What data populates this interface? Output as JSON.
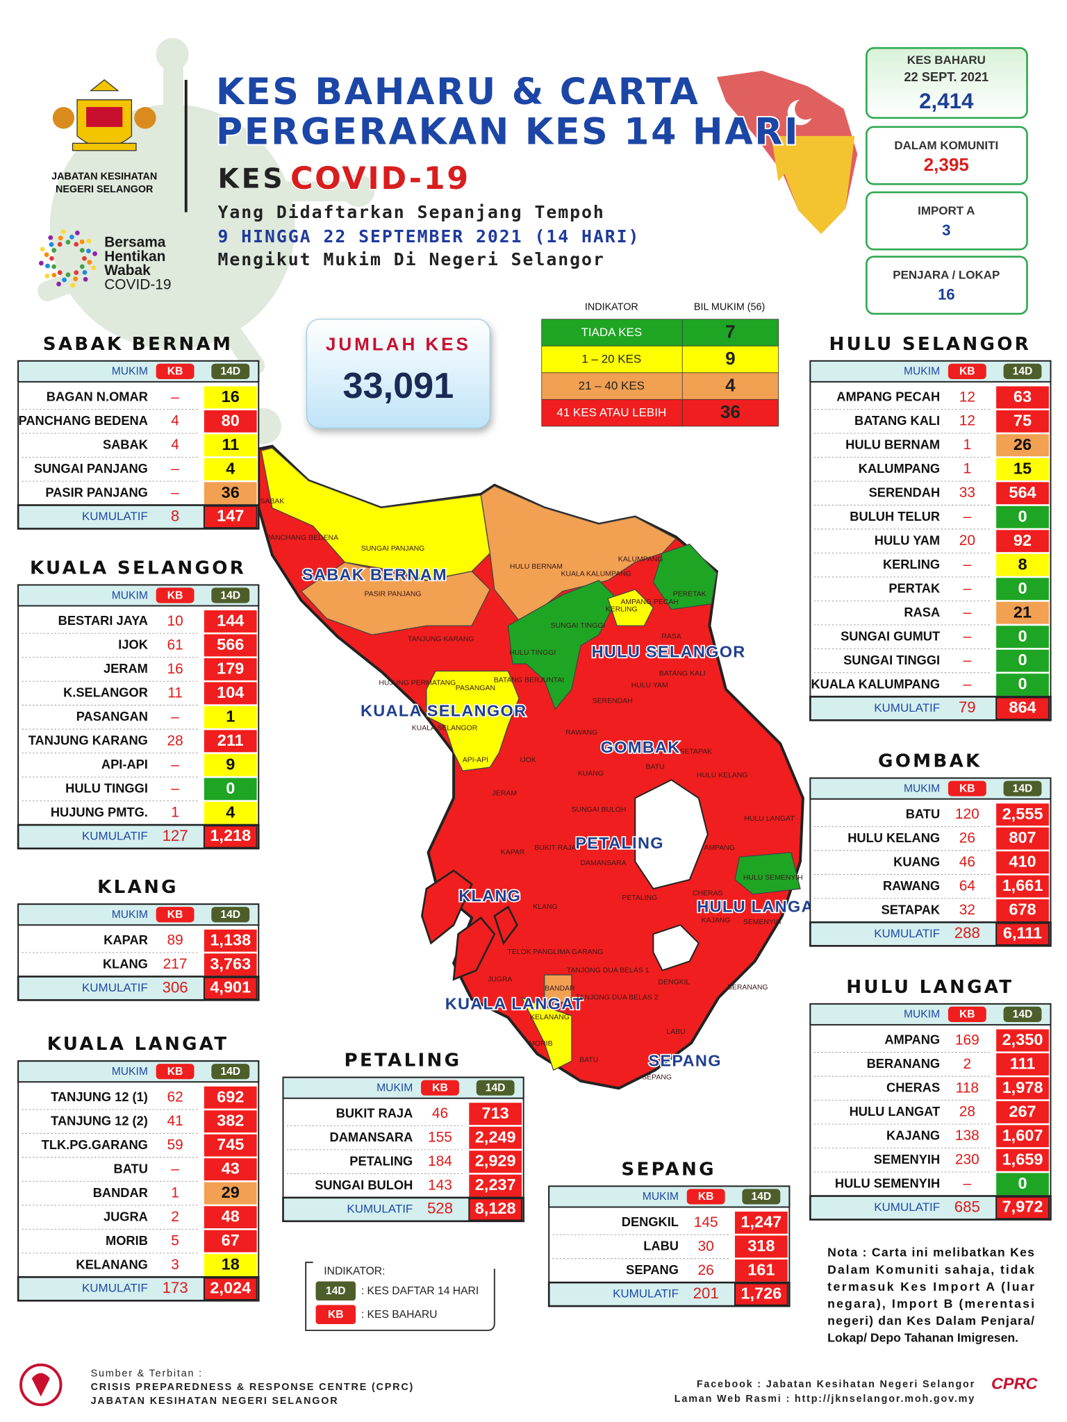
{
  "header": {
    "logo_caption": [
      "JABATAN KESIHATAN",
      "NEGERI SELANGOR"
    ],
    "campaign": [
      "Bersama",
      "Hentikan",
      "Wabak",
      "COVID-19"
    ],
    "title_line1": "KES BAHARU & CARTA",
    "title_line2": "PERGERAKAN KES 14 HARI",
    "kes": "KES",
    "covid": "COVID-19",
    "sub1": "Yang Didaftarkan Sepanjang Tempoh",
    "sub2": "9 HINGGA 22 SEPTEMBER 2021 (14 HARI)",
    "sub3": "Mengikut Mukim Di Negeri Selangor"
  },
  "summary": [
    {
      "label": "KES BAHARU",
      "date": "22 SEPT. 2021",
      "value": "2,414"
    },
    {
      "label": "DALAM KOMUNITI",
      "value": "2,395"
    },
    {
      "label": "IMPORT A",
      "value": "3"
    },
    {
      "label": "PENJARA / LOKAP",
      "value": "16"
    }
  ],
  "total": {
    "label": "JUMLAH KES",
    "value": "33,091"
  },
  "indicator": {
    "header": [
      "INDIKATOR",
      "BIL MUKIM (56)"
    ],
    "rows": [
      {
        "label": "TIADA KES",
        "count": "7",
        "color": "#1fa524"
      },
      {
        "label": "1 – 20 KES",
        "count": "9",
        "color": "#ffff00"
      },
      {
        "label": "21 – 40 KES",
        "count": "4",
        "color": "#f2a052"
      },
      {
        "label": "41 KES ATAU LEBIH",
        "count": "36",
        "color": "#f01e1e"
      }
    ]
  },
  "table_header": [
    "MUKIM",
    "KB",
    "14D"
  ],
  "total_label": "KUMULATIF",
  "districts": [
    {
      "name": "SABAK BERNAM",
      "rows": [
        {
          "mukim": "BAGAN N.OMAR",
          "kb": "–",
          "d14": "16",
          "color": "#ffff00"
        },
        {
          "mukim": "PANCHANG BEDENA",
          "kb": "4",
          "d14": "80",
          "color": "#f01e1e"
        },
        {
          "mukim": "SABAK",
          "kb": "4",
          "d14": "11",
          "color": "#ffff00"
        },
        {
          "mukim": "SUNGAI PANJANG",
          "kb": "–",
          "d14": "4",
          "color": "#ffff00"
        },
        {
          "mukim": "PASIR PANJANG",
          "kb": "–",
          "d14": "36",
          "color": "#f2a052"
        }
      ],
      "total_kb": "8",
      "total_d14": "147"
    },
    {
      "name": "KUALA SELANGOR",
      "rows": [
        {
          "mukim": "BESTARI JAYA",
          "kb": "10",
          "d14": "144",
          "color": "#f01e1e"
        },
        {
          "mukim": "IJOK",
          "kb": "61",
          "d14": "566",
          "color": "#f01e1e"
        },
        {
          "mukim": "JERAM",
          "kb": "16",
          "d14": "179",
          "color": "#f01e1e"
        },
        {
          "mukim": "K.SELANGOR",
          "kb": "11",
          "d14": "104",
          "color": "#f01e1e"
        },
        {
          "mukim": "PASANGAN",
          "kb": "–",
          "d14": "1",
          "color": "#ffff00"
        },
        {
          "mukim": "TANJUNG KARANG",
          "kb": "28",
          "d14": "211",
          "color": "#f01e1e"
        },
        {
          "mukim": "API-API",
          "kb": "–",
          "d14": "9",
          "color": "#ffff00"
        },
        {
          "mukim": "HULU TINGGI",
          "kb": "–",
          "d14": "0",
          "color": "#1fa524"
        },
        {
          "mukim": "HUJUNG PMTG.",
          "kb": "1",
          "d14": "4",
          "color": "#ffff00"
        }
      ],
      "total_kb": "127",
      "total_d14": "1,218"
    },
    {
      "name": "KLANG",
      "rows": [
        {
          "mukim": "KAPAR",
          "kb": "89",
          "d14": "1,138",
          "color": "#f01e1e"
        },
        {
          "mukim": "KLANG",
          "kb": "217",
          "d14": "3,763",
          "color": "#f01e1e"
        }
      ],
      "total_kb": "306",
      "total_d14": "4,901"
    },
    {
      "name": "KUALA LANGAT",
      "rows": [
        {
          "mukim": "TANJUNG 12 (1)",
          "kb": "62",
          "d14": "692",
          "color": "#f01e1e"
        },
        {
          "mukim": "TANJUNG 12 (2)",
          "kb": "41",
          "d14": "382",
          "color": "#f01e1e"
        },
        {
          "mukim": "TLK.PG.GARANG",
          "kb": "59",
          "d14": "745",
          "color": "#f01e1e"
        },
        {
          "mukim": "BATU",
          "kb": "–",
          "d14": "43",
          "color": "#f01e1e"
        },
        {
          "mukim": "BANDAR",
          "kb": "1",
          "d14": "29",
          "color": "#f2a052"
        },
        {
          "mukim": "JUGRA",
          "kb": "2",
          "d14": "48",
          "color": "#f01e1e"
        },
        {
          "mukim": "MORIB",
          "kb": "5",
          "d14": "67",
          "color": "#f01e1e"
        },
        {
          "mukim": "KELANANG",
          "kb": "3",
          "d14": "18",
          "color": "#ffff00"
        }
      ],
      "total_kb": "173",
      "total_d14": "2,024"
    },
    {
      "name": "HULU SELANGOR",
      "rows": [
        {
          "mukim": "AMPANG PECAH",
          "kb": "12",
          "d14": "63",
          "color": "#f01e1e"
        },
        {
          "mukim": "BATANG KALI",
          "kb": "12",
          "d14": "75",
          "color": "#f01e1e"
        },
        {
          "mukim": "HULU BERNAM",
          "kb": "1",
          "d14": "26",
          "color": "#f2a052"
        },
        {
          "mukim": "KALUMPANG",
          "kb": "1",
          "d14": "15",
          "color": "#ffff00"
        },
        {
          "mukim": "SERENDAH",
          "kb": "33",
          "d14": "564",
          "color": "#f01e1e"
        },
        {
          "mukim": "BULUH TELUR",
          "kb": "–",
          "d14": "0",
          "color": "#1fa524"
        },
        {
          "mukim": "HULU YAM",
          "kb": "20",
          "d14": "92",
          "color": "#f01e1e"
        },
        {
          "mukim": "KERLING",
          "kb": "–",
          "d14": "8",
          "color": "#ffff00"
        },
        {
          "mukim": "PERTAK",
          "kb": "–",
          "d14": "0",
          "color": "#1fa524"
        },
        {
          "mukim": "RASA",
          "kb": "–",
          "d14": "21",
          "color": "#f2a052"
        },
        {
          "mukim": "SUNGAI GUMUT",
          "kb": "–",
          "d14": "0",
          "color": "#1fa524"
        },
        {
          "mukim": "SUNGAI TINGGI",
          "kb": "–",
          "d14": "0",
          "color": "#1fa524"
        },
        {
          "mukim": "KUALA KALUMPANG",
          "kb": "–",
          "d14": "0",
          "color": "#1fa524"
        }
      ],
      "total_kb": "79",
      "total_d14": "864"
    },
    {
      "name": "GOMBAK",
      "rows": [
        {
          "mukim": "BATU",
          "kb": "120",
          "d14": "2,555",
          "color": "#f01e1e"
        },
        {
          "mukim": "HULU KELANG",
          "kb": "26",
          "d14": "807",
          "color": "#f01e1e"
        },
        {
          "mukim": "KUANG",
          "kb": "46",
          "d14": "410",
          "color": "#f01e1e"
        },
        {
          "mukim": "RAWANG",
          "kb": "64",
          "d14": "1,661",
          "color": "#f01e1e"
        },
        {
          "mukim": "SETAPAK",
          "kb": "32",
          "d14": "678",
          "color": "#f01e1e"
        }
      ],
      "total_kb": "288",
      "total_d14": "6,111"
    },
    {
      "name": "HULU LANGAT",
      "rows": [
        {
          "mukim": "AMPANG",
          "kb": "169",
          "d14": "2,350",
          "color": "#f01e1e"
        },
        {
          "mukim": "BERANANG",
          "kb": "2",
          "d14": "111",
          "color": "#f01e1e"
        },
        {
          "mukim": "CHERAS",
          "kb": "118",
          "d14": "1,978",
          "color": "#f01e1e"
        },
        {
          "mukim": "HULU LANGAT",
          "kb": "28",
          "d14": "267",
          "color": "#f01e1e"
        },
        {
          "mukim": "KAJANG",
          "kb": "138",
          "d14": "1,607",
          "color": "#f01e1e"
        },
        {
          "mukim": "SEMENYIH",
          "kb": "230",
          "d14": "1,659",
          "color": "#f01e1e"
        },
        {
          "mukim": "HULU SEMENYIH",
          "kb": "–",
          "d14": "0",
          "color": "#1fa524"
        }
      ],
      "total_kb": "685",
      "total_d14": "7,972"
    },
    {
      "name": "PETALING",
      "rows": [
        {
          "mukim": "BUKIT RAJA",
          "kb": "46",
          "d14": "713",
          "color": "#f01e1e"
        },
        {
          "mukim": "DAMANSARA",
          "kb": "155",
          "d14": "2,249",
          "color": "#f01e1e"
        },
        {
          "mukim": "PETALING",
          "kb": "184",
          "d14": "2,929",
          "color": "#f01e1e"
        },
        {
          "mukim": "SUNGAI BULOH",
          "kb": "143",
          "d14": "2,237",
          "color": "#f01e1e"
        }
      ],
      "total_kb": "528",
      "total_d14": "8,128"
    },
    {
      "name": "SEPANG",
      "rows": [
        {
          "mukim": "DENGKIL",
          "kb": "145",
          "d14": "1,247",
          "color": "#f01e1e"
        },
        {
          "mukim": "LABU",
          "kb": "30",
          "d14": "318",
          "color": "#f01e1e"
        },
        {
          "mukim": "SEPANG",
          "kb": "26",
          "d14": "161",
          "color": "#f01e1e"
        }
      ],
      "total_kb": "201",
      "total_d14": "1,726"
    }
  ],
  "map_districts": [
    "SABAK BERNAM",
    "HULU SELANGOR",
    "KUALA SELANGOR",
    "GOMBAK",
    "PETALING",
    "KLANG",
    "HULU LANGAT",
    "KUALA LANGAT",
    "SEPANG"
  ],
  "map_mukims": [
    "PANCHANG BEDENA",
    "SUNGAI PANJANG",
    "PASIR PANJANG",
    "SABAK",
    "HULU BERNAM",
    "KALUMPANG",
    "KUALA KALUMPANG",
    "PERETAK",
    "KERLING",
    "AMPANG PECAH",
    "RASA",
    "SUNGAI TINGGI",
    "HULU TINGGI",
    "TANJUNG KARANG",
    "BATANG BERJUNTAI",
    "HUJUNG PERMATANG",
    "PASANGAN",
    "KUALA SELANGOR",
    "API-API",
    "IJOK",
    "JERAM",
    "SERENDAH",
    "HULU YAM",
    "BATANG KALI",
    "RAWANG",
    "KUANG",
    "SETAPAK",
    "BATU",
    "HULU KELANG",
    "SUNGAI BULOH",
    "HULU LANGAT",
    "KAPAR",
    "BUKIT RAJA",
    "DAMANSARA",
    "AMPANG",
    "HULU SEMENYIH",
    "KLANG",
    "PETALING",
    "CHERAS",
    "KAJANG",
    "SEMENYIH",
    "BERANANG",
    "TELOK PANGLIMA GARANG",
    "TANJONG DUA BELAS 1",
    "TANJONG DUA BELAS 2",
    "JUGRA",
    "BANDAR",
    "KELANANG",
    "MORIB",
    "DENGKIL",
    "LABU",
    "BATU",
    "SEPANG"
  ],
  "legend": {
    "title": "INDIKATOR:",
    "items": [
      {
        "key": "14D",
        "text": ": KES DAFTAR 14 HARI"
      },
      {
        "key": "KB",
        "text": ": KES BAHARU"
      }
    ]
  },
  "note": [
    "Nota : Carta ini melibatkan Kes",
    "Dalam Komuniti sahaja, tidak",
    "termasuk Kes Import A (luar",
    "negara), Import B (merentasi",
    "negeri) dan Kes Dalam Penjara/",
    "Lokap/ Depo Tahanan Imigresen."
  ],
  "footer": {
    "source": [
      "Sumber & Terbitan :",
      "CRISIS PREPAREDNESS & RESPONSE CENTRE (CPRC)",
      "JABATAN KESIHATAN NEGERI SELANGOR"
    ],
    "web": [
      "Facebook : Jabatan Kesihatan Negeri Selangor",
      "Laman Web Rasmi : http://jknselangor.moh.gov.my"
    ],
    "logo": "CPRC"
  }
}
